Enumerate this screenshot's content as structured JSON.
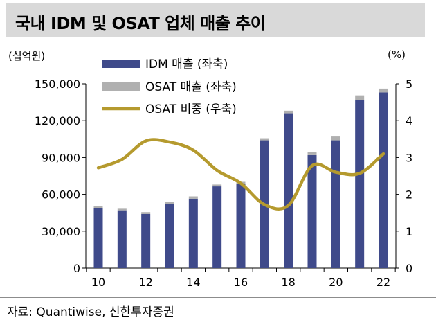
{
  "header": {
    "title": "국내 IDM 및 OSAT 업체 매출 추이"
  },
  "footer": {
    "source": "자료: Quantiwise, 신한투자증권"
  },
  "colors": {
    "idm": "#3f4a8a",
    "osat": "#b0b0b0",
    "ratio": "#b59a2e"
  },
  "chart_data": {
    "type": "bar",
    "stacked": true,
    "x": [
      10,
      11,
      12,
      13,
      14,
      15,
      16,
      17,
      18,
      19,
      20,
      21,
      22
    ],
    "x_tick_labels": [
      "10",
      "12",
      "14",
      "16",
      "18",
      "20",
      "22"
    ],
    "y_unit_left": "(십억원)",
    "y_unit_right": "(%)",
    "ylim_left": [
      0,
      150000
    ],
    "ylim_right": [
      0,
      5
    ],
    "y_ticks_left": [
      "150,000",
      "120,000",
      "90,000",
      "60,000",
      "30,000",
      "0"
    ],
    "y_ticks_right": [
      "5",
      "4",
      "3",
      "2",
      "1",
      "0"
    ],
    "legend_position": "top-center",
    "series": [
      {
        "name": "IDM 매출 (좌축)",
        "axis": "left",
        "kind": "bar",
        "values": [
          49000,
          47000,
          44000,
          52000,
          56500,
          66500,
          68500,
          104000,
          126000,
          92000,
          104000,
          137000,
          143000
        ]
      },
      {
        "name": "OSAT 매출 (좌축)",
        "axis": "left",
        "kind": "bar",
        "values": [
          1400,
          1300,
          1550,
          1600,
          1850,
          1500,
          1700,
          1700,
          2100,
          2450,
          3100,
          3600,
          3100
        ]
      },
      {
        "name": "OSAT 비중 (우축)",
        "axis": "right",
        "kind": "line",
        "values": [
          2.72,
          2.95,
          3.45,
          3.42,
          3.2,
          2.65,
          2.3,
          1.72,
          1.7,
          2.78,
          2.6,
          2.57,
          3.1
        ]
      }
    ]
  }
}
